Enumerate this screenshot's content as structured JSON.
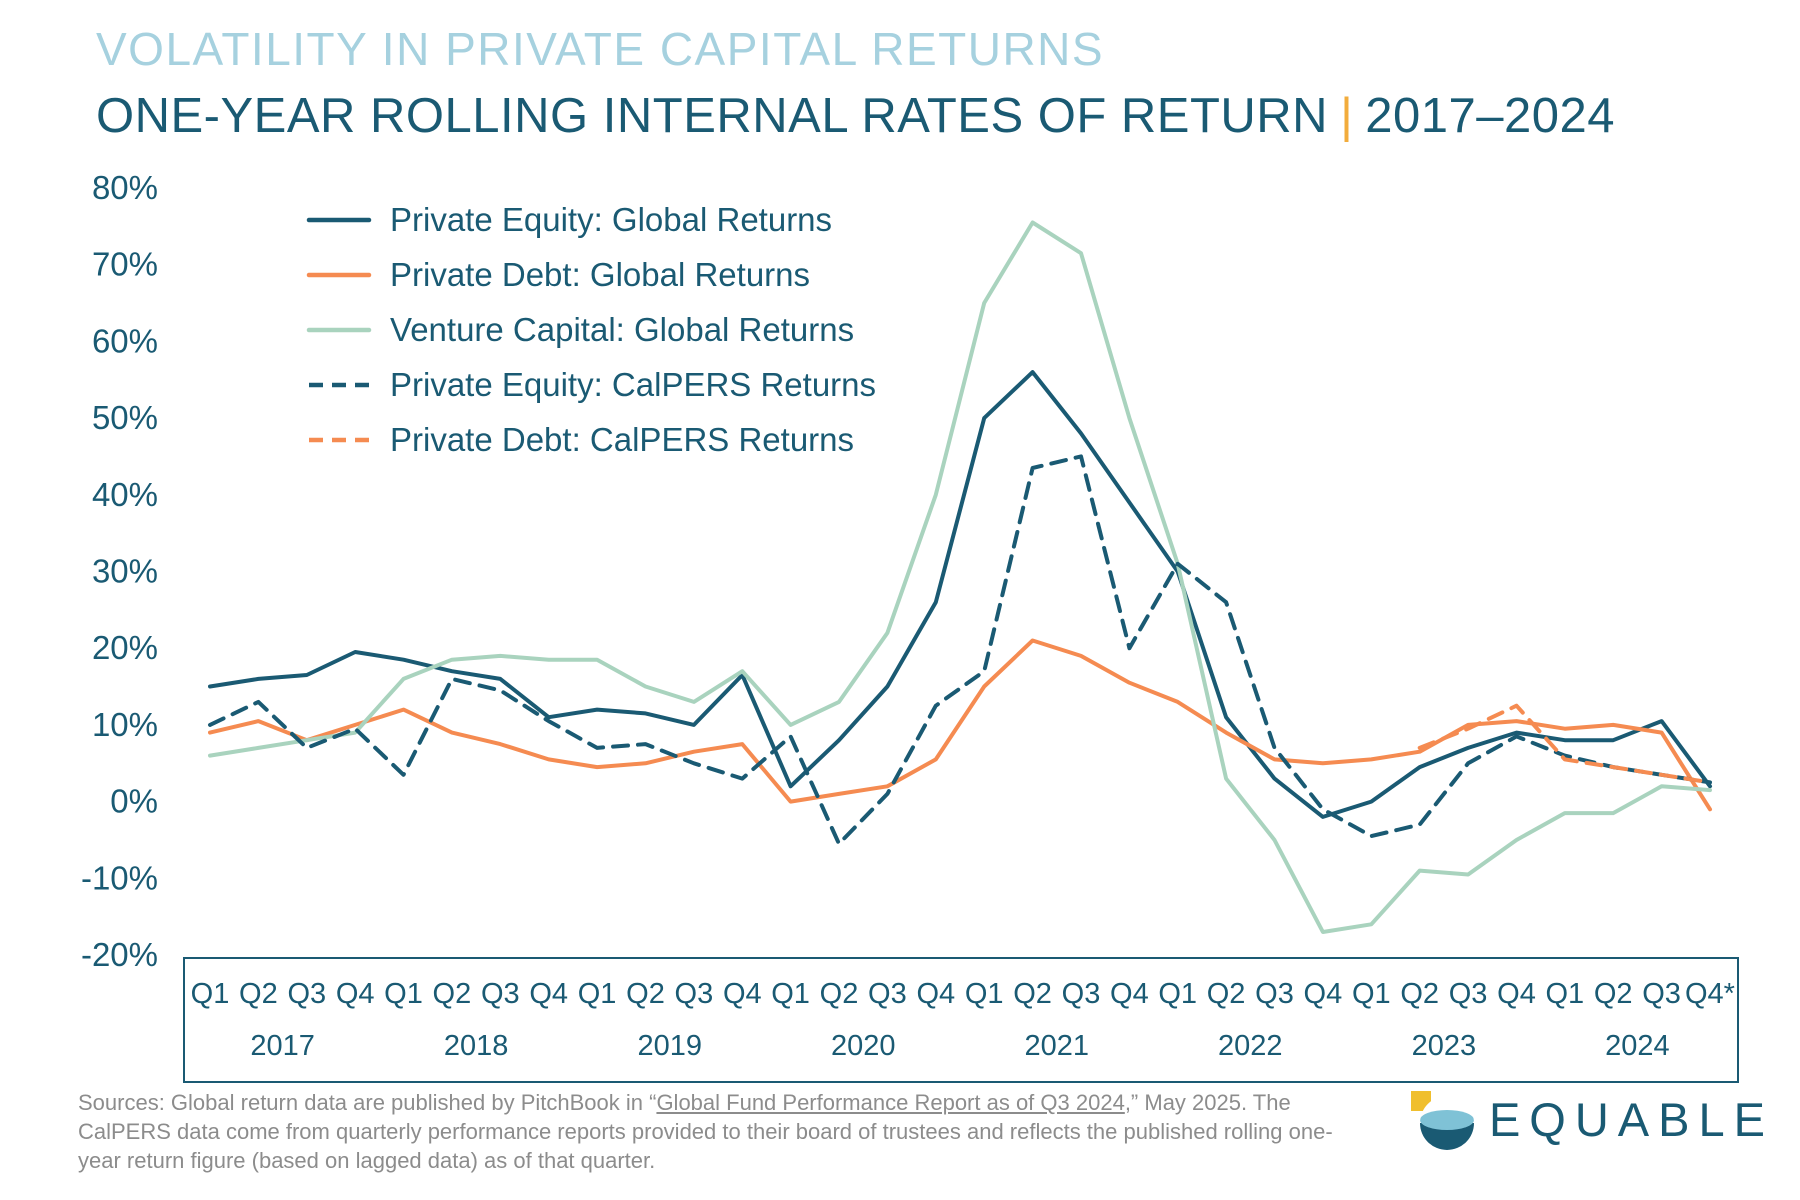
{
  "header": {
    "title": "VOLATILITY IN PRIVATE CAPITAL RETURNS",
    "subtitle": "ONE-YEAR ROLLING INTERNAL RATES OF RETURN",
    "separator": "|",
    "period": "2017–2024"
  },
  "chart_data": {
    "type": "line",
    "title": "Volatility in Private Capital Returns — One-Year Rolling Internal Rates of Return, 2017–2024",
    "xlabel": "",
    "ylabel": "",
    "ylim": [
      -20,
      80
    ],
    "grid": false,
    "legend_position": "top-left",
    "y_ticks": {
      "values": [
        80,
        70,
        60,
        50,
        40,
        30,
        20,
        10,
        0,
        -10,
        -20
      ],
      "labels": [
        "80%",
        "70%",
        "60%",
        "50%",
        "40%",
        "30%",
        "20%",
        "10%",
        "0%",
        "-10%",
        "-20%"
      ]
    },
    "x_quarters": [
      "Q1",
      "Q2",
      "Q3",
      "Q4",
      "Q1",
      "Q2",
      "Q3",
      "Q4",
      "Q1",
      "Q2",
      "Q3",
      "Q4",
      "Q1",
      "Q2",
      "Q3",
      "Q4",
      "Q1",
      "Q2",
      "Q3",
      "Q4",
      "Q1",
      "Q2",
      "Q3",
      "Q4",
      "Q1",
      "Q2",
      "Q3",
      "Q4",
      "Q1",
      "Q2",
      "Q3",
      "Q4*"
    ],
    "years": [
      "2017",
      "2018",
      "2019",
      "2020",
      "2021",
      "2022",
      "2023",
      "2024"
    ],
    "series": [
      {
        "name": "Private Equity: Global Returns",
        "color": "#1a5a73",
        "style": "solid",
        "values": [
          15,
          16,
          16.5,
          19.5,
          18.5,
          17,
          16,
          11,
          12,
          11.5,
          10,
          16.5,
          2,
          8,
          15,
          26,
          50,
          56,
          48,
          39,
          30,
          11,
          3,
          -2,
          0,
          4.5,
          7,
          9,
          8,
          8,
          10.5,
          2
        ]
      },
      {
        "name": "Private Debt: Global Returns",
        "color": "#f58b51",
        "style": "solid",
        "values": [
          9,
          10.5,
          8,
          10,
          12,
          9,
          7.5,
          5.5,
          4.5,
          5,
          6.5,
          7.5,
          0,
          1,
          2,
          5.5,
          15,
          21,
          19,
          15.5,
          13,
          9,
          5.5,
          5,
          5.5,
          6.5,
          10,
          10.5,
          9.5,
          10,
          9,
          -1
        ]
      },
      {
        "name": "Venture Capital: Global Returns",
        "color": "#a9d3be",
        "style": "solid",
        "values": [
          6,
          7,
          8,
          9,
          16,
          18.5,
          19,
          18.5,
          18.5,
          15,
          13,
          17,
          10,
          13,
          22,
          40,
          65,
          75.5,
          71.5,
          50,
          31,
          3,
          -5,
          -17,
          -16,
          -9,
          -9.5,
          -5,
          -1.5,
          -1.5,
          2,
          1.5
        ]
      },
      {
        "name": "Private Equity: CalPERS Returns",
        "color": "#1a5a73",
        "style": "dashed",
        "values": [
          10,
          13,
          7,
          9.5,
          3.5,
          16,
          14.5,
          10.5,
          7,
          7.5,
          5,
          3,
          8.5,
          -5.5,
          1,
          12.5,
          17,
          43.5,
          45,
          20,
          31,
          26,
          7,
          -1,
          -4.5,
          -3,
          5,
          8.5,
          6,
          4.5,
          3.5,
          2.5
        ]
      },
      {
        "name": "Private Debt: CalPERS Returns",
        "color": "#f58b51",
        "style": "dashed",
        "values": [
          null,
          null,
          null,
          null,
          null,
          null,
          null,
          null,
          null,
          null,
          null,
          null,
          null,
          null,
          null,
          null,
          null,
          null,
          null,
          null,
          null,
          null,
          null,
          null,
          null,
          7,
          9.5,
          12.5,
          5.5,
          4.5,
          3.5,
          2.5
        ]
      }
    ]
  },
  "footer": {
    "sources_prefix": "Sources: Global return data are published by PitchBook in “",
    "sources_link": "Global Fund Performance Report as of Q3 2024",
    "sources_suffix": ",” May 2025. The CalPERS data come from quarterly performance reports provided to their board of trustees and reflects the published rolling one-year return figure (based on lagged data) as of that quarter.",
    "logo_text": "EQUABLE"
  }
}
